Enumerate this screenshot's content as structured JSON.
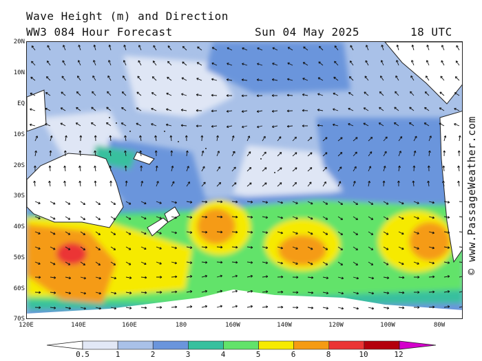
{
  "header": {
    "title": "Wave Height (m) and Direction",
    "model": "WW3 084 Hour Forecast",
    "date": "Sun 04 May 2025",
    "time": "18 UTC"
  },
  "credit": "© www.PassageWeather.com",
  "axes": {
    "lat_labels": [
      "20N",
      "10N",
      "EQ",
      "10S",
      "20S",
      "30S",
      "40S",
      "50S",
      "60S",
      "70S"
    ],
    "lon_labels": [
      "120E",
      "140E",
      "160E",
      "180",
      "160W",
      "140W",
      "120W",
      "100W",
      "80W"
    ]
  },
  "legend": {
    "labels": [
      "0.5",
      "1",
      "2",
      "3",
      "4",
      "5",
      "6",
      "8",
      "10",
      "12"
    ],
    "colors": [
      "#e2e8f6",
      "#a9c1e8",
      "#6a95dc",
      "#37c09e",
      "#62e36a",
      "#f6ea00",
      "#f59b13",
      "#eb3535",
      "#b4000c",
      "#d400cc"
    ]
  }
}
